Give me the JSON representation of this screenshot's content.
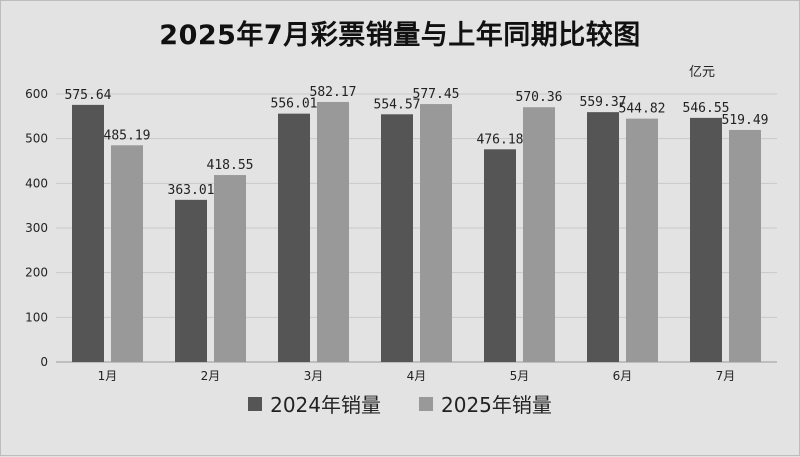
{
  "chart_data": {
    "type": "bar",
    "title": "2025年7月彩票销量与上年同期比较图",
    "unit": "亿元",
    "categories": [
      "1月",
      "2月",
      "3月",
      "4月",
      "5月",
      "6月",
      "7月"
    ],
    "series": [
      {
        "name": "2024年销量",
        "color": "#555555",
        "values": [
          575.64,
          363.01,
          556.01,
          554.57,
          476.18,
          559.37,
          546.55
        ],
        "labels": [
          "575.64",
          "363.01",
          "556.01",
          "554.57",
          "476.18",
          "559.37",
          "546.55"
        ]
      },
      {
        "name": "2025年销量",
        "color": "#999999",
        "values": [
          485.19,
          418.55,
          582.17,
          577.45,
          570.36,
          544.82,
          519.49
        ],
        "labels": [
          "485.19",
          "418.55",
          "582.17",
          "577.45",
          "570.36",
          "544.82",
          "519.49"
        ]
      }
    ],
    "ylim": [
      0,
      600
    ],
    "yticks": [
      "0",
      "100",
      "200",
      "300",
      "400",
      "500",
      "600"
    ],
    "grid": true,
    "legend": "bottom"
  }
}
